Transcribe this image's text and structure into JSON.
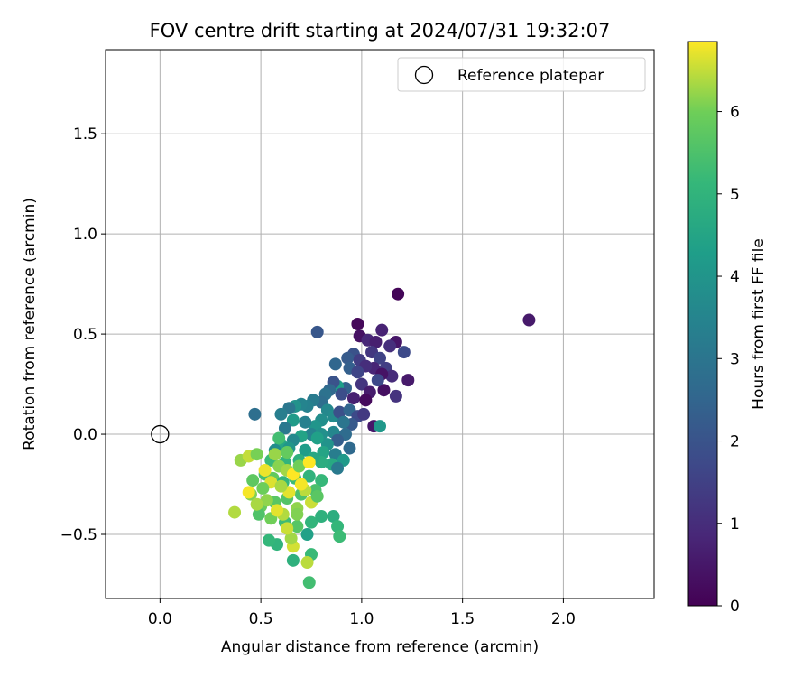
{
  "chart_data": {
    "type": "scatter",
    "title": "FOV centre drift starting at 2024/07/31 19:32:07",
    "xlabel": "Angular distance from reference (arcmin)",
    "ylabel": "Rotation from reference (arcmin)",
    "xlim": [
      -0.27,
      2.45
    ],
    "ylim": [
      -0.82,
      1.92
    ],
    "xticks": [
      0.0,
      0.5,
      1.0,
      1.5,
      2.0
    ],
    "xtick_labels": [
      "0.0",
      "0.5",
      "1.0",
      "1.5",
      "2.0"
    ],
    "yticks": [
      -0.5,
      0.0,
      0.5,
      1.0,
      1.5
    ],
    "ytick_labels": [
      "−0.5",
      "0.0",
      "0.5",
      "1.0",
      "1.5"
    ],
    "grid": true,
    "legend": {
      "placement": "top-right",
      "entries": [
        "Reference platepar"
      ]
    },
    "reference_point": {
      "x": 0.0,
      "y": 0.0,
      "label": "Reference platepar"
    },
    "colorbar": {
      "label": "Hours from first FF file",
      "range": [
        0,
        6.85
      ],
      "ticks": [
        0,
        1,
        2,
        3,
        4,
        5,
        6
      ],
      "colormap": "viridis"
    },
    "points": [
      [
        1.18,
        0.7,
        0.1
      ],
      [
        1.83,
        0.57,
        0.55
      ],
      [
        0.98,
        0.55,
        0.15
      ],
      [
        1.1,
        0.52,
        0.75
      ],
      [
        0.99,
        0.49,
        0.35
      ],
      [
        1.03,
        0.47,
        0.85
      ],
      [
        1.17,
        0.46,
        0.45
      ],
      [
        1.14,
        0.44,
        1.05
      ],
      [
        1.07,
        0.46,
        0.65
      ],
      [
        1.21,
        0.41,
        1.75
      ],
      [
        1.05,
        0.41,
        1.25
      ],
      [
        1.09,
        0.38,
        1.55
      ],
      [
        1.12,
        0.33,
        1.45
      ],
      [
        1.23,
        0.27,
        0.55
      ],
      [
        1.15,
        0.29,
        0.95
      ],
      [
        1.11,
        0.22,
        0.3
      ],
      [
        1.17,
        0.19,
        1.15
      ],
      [
        1.06,
        0.33,
        0.8
      ],
      [
        0.96,
        0.4,
        1.95
      ],
      [
        0.93,
        0.38,
        2.2
      ],
      [
        0.99,
        0.37,
        1.4
      ],
      [
        1.02,
        0.34,
        1.0
      ],
      [
        0.94,
        0.33,
        2.35
      ],
      [
        0.98,
        0.31,
        1.6
      ],
      [
        0.87,
        0.35,
        2.55
      ],
      [
        0.78,
        0.51,
        2.1
      ],
      [
        1.1,
        0.3,
        0.4
      ],
      [
        1.08,
        0.27,
        1.7
      ],
      [
        1.0,
        0.25,
        1.2
      ],
      [
        1.04,
        0.21,
        0.6
      ],
      [
        0.96,
        0.18,
        0.7
      ],
      [
        1.02,
        0.17,
        0.2
      ],
      [
        0.92,
        0.23,
        2.4
      ],
      [
        0.88,
        0.24,
        4.3
      ],
      [
        0.9,
        0.2,
        1.85
      ],
      [
        0.86,
        0.26,
        2.0
      ],
      [
        0.84,
        0.22,
        2.6
      ],
      [
        0.82,
        0.2,
        2.9
      ],
      [
        0.8,
        0.16,
        2.75
      ],
      [
        0.76,
        0.17,
        3.2
      ],
      [
        0.73,
        0.14,
        3.4
      ],
      [
        0.7,
        0.15,
        3.5
      ],
      [
        0.67,
        0.14,
        3.9
      ],
      [
        0.64,
        0.13,
        3.05
      ],
      [
        0.6,
        0.1,
        3.3
      ],
      [
        0.47,
        0.1,
        2.8
      ],
      [
        0.83,
        0.12,
        3.6
      ],
      [
        0.86,
        0.09,
        3.7
      ],
      [
        0.89,
        0.11,
        1.9
      ],
      [
        0.94,
        0.12,
        2.5
      ],
      [
        0.98,
        0.09,
        1.75
      ],
      [
        1.01,
        0.1,
        1.3
      ],
      [
        1.06,
        0.04,
        0.5
      ],
      [
        1.09,
        0.04,
        4.1
      ],
      [
        0.95,
        0.05,
        2.15
      ],
      [
        0.91,
        0.06,
        3.0
      ],
      [
        0.8,
        0.07,
        3.8
      ],
      [
        0.77,
        0.04,
        4.0
      ],
      [
        0.72,
        0.06,
        3.35
      ],
      [
        0.66,
        0.07,
        4.2
      ],
      [
        0.62,
        0.03,
        3.1
      ],
      [
        0.75,
        0.0,
        3.45
      ],
      [
        0.8,
        0.0,
        3.85
      ],
      [
        0.86,
        0.01,
        3.55
      ],
      [
        0.92,
        0.0,
        2.7
      ],
      [
        0.88,
        -0.03,
        2.3
      ],
      [
        0.83,
        -0.05,
        3.95
      ],
      [
        0.78,
        -0.02,
        4.35
      ],
      [
        0.7,
        -0.01,
        4.45
      ],
      [
        0.66,
        -0.03,
        3.65
      ],
      [
        0.6,
        -0.05,
        4.55
      ],
      [
        0.57,
        -0.08,
        3.75
      ],
      [
        0.64,
        -0.07,
        4.05
      ],
      [
        0.72,
        -0.08,
        4.25
      ],
      [
        0.81,
        -0.09,
        4.5
      ],
      [
        0.87,
        -0.1,
        3.25
      ],
      [
        0.94,
        -0.07,
        2.65
      ],
      [
        0.91,
        -0.13,
        4.15
      ],
      [
        0.85,
        -0.15,
        4.65
      ],
      [
        0.88,
        -0.17,
        3.15
      ],
      [
        0.8,
        -0.14,
        4.75
      ],
      [
        0.76,
        -0.12,
        4.6
      ],
      [
        0.69,
        -0.13,
        4.85
      ],
      [
        0.62,
        -0.14,
        5.0
      ],
      [
        0.55,
        -0.13,
        5.2
      ],
      [
        0.59,
        -0.02,
        5.35
      ],
      [
        0.52,
        -0.2,
        5.4
      ],
      [
        0.56,
        -0.22,
        5.8
      ],
      [
        0.61,
        -0.24,
        5.1
      ],
      [
        0.67,
        -0.22,
        5.25
      ],
      [
        0.74,
        -0.21,
        4.95
      ],
      [
        0.8,
        -0.23,
        5.15
      ],
      [
        0.77,
        -0.28,
        5.45
      ],
      [
        0.7,
        -0.3,
        5.5
      ],
      [
        0.63,
        -0.32,
        5.6
      ],
      [
        0.57,
        -0.34,
        5.7
      ],
      [
        0.5,
        -0.36,
        5.9
      ],
      [
        0.45,
        -0.3,
        6.1
      ],
      [
        0.49,
        -0.4,
        5.55
      ],
      [
        0.55,
        -0.42,
        6.0
      ],
      [
        0.62,
        -0.44,
        5.3
      ],
      [
        0.68,
        -0.46,
        5.65
      ],
      [
        0.75,
        -0.44,
        5.05
      ],
      [
        0.8,
        -0.41,
        4.9
      ],
      [
        0.86,
        -0.41,
        4.8
      ],
      [
        0.88,
        -0.46,
        5.1
      ],
      [
        0.89,
        -0.51,
        5.25
      ],
      [
        0.73,
        -0.5,
        4.4
      ],
      [
        0.75,
        -0.6,
        5.2
      ],
      [
        0.66,
        -0.63,
        4.9
      ],
      [
        0.58,
        -0.55,
        5.0
      ],
      [
        0.54,
        -0.53,
        5.1
      ],
      [
        0.73,
        -0.64,
        6.45
      ],
      [
        0.74,
        -0.74,
        5.35
      ],
      [
        0.66,
        -0.56,
        6.6
      ],
      [
        0.65,
        -0.52,
        6.3
      ],
      [
        0.63,
        -0.47,
        6.55
      ],
      [
        0.61,
        -0.4,
        6.4
      ],
      [
        0.58,
        -0.38,
        6.7
      ],
      [
        0.53,
        -0.33,
        6.2
      ],
      [
        0.48,
        -0.35,
        6.35
      ],
      [
        0.44,
        -0.29,
        6.8
      ],
      [
        0.4,
        -0.13,
        6.25
      ],
      [
        0.44,
        -0.11,
        6.5
      ],
      [
        0.48,
        -0.1,
        6.05
      ],
      [
        0.52,
        -0.18,
        6.75
      ],
      [
        0.55,
        -0.24,
        6.65
      ],
      [
        0.59,
        -0.16,
        6.15
      ],
      [
        0.63,
        -0.18,
        6.3
      ],
      [
        0.66,
        -0.2,
        6.85
      ],
      [
        0.69,
        -0.16,
        6.0
      ],
      [
        0.72,
        -0.28,
        6.45
      ],
      [
        0.75,
        -0.34,
        6.55
      ],
      [
        0.68,
        -0.37,
        6.2
      ],
      [
        0.64,
        -0.29,
        6.7
      ],
      [
        0.6,
        -0.26,
        6.35
      ],
      [
        0.37,
        -0.39,
        6.4
      ],
      [
        0.51,
        -0.27,
        5.95
      ],
      [
        0.46,
        -0.23,
        5.75
      ],
      [
        0.57,
        -0.1,
        6.25
      ],
      [
        0.63,
        -0.09,
        5.85
      ],
      [
        0.7,
        -0.25,
        6.8
      ],
      [
        0.74,
        -0.14,
        6.9
      ],
      [
        0.68,
        -0.4,
        6.1
      ],
      [
        0.78,
        -0.31,
        5.7
      ]
    ]
  }
}
